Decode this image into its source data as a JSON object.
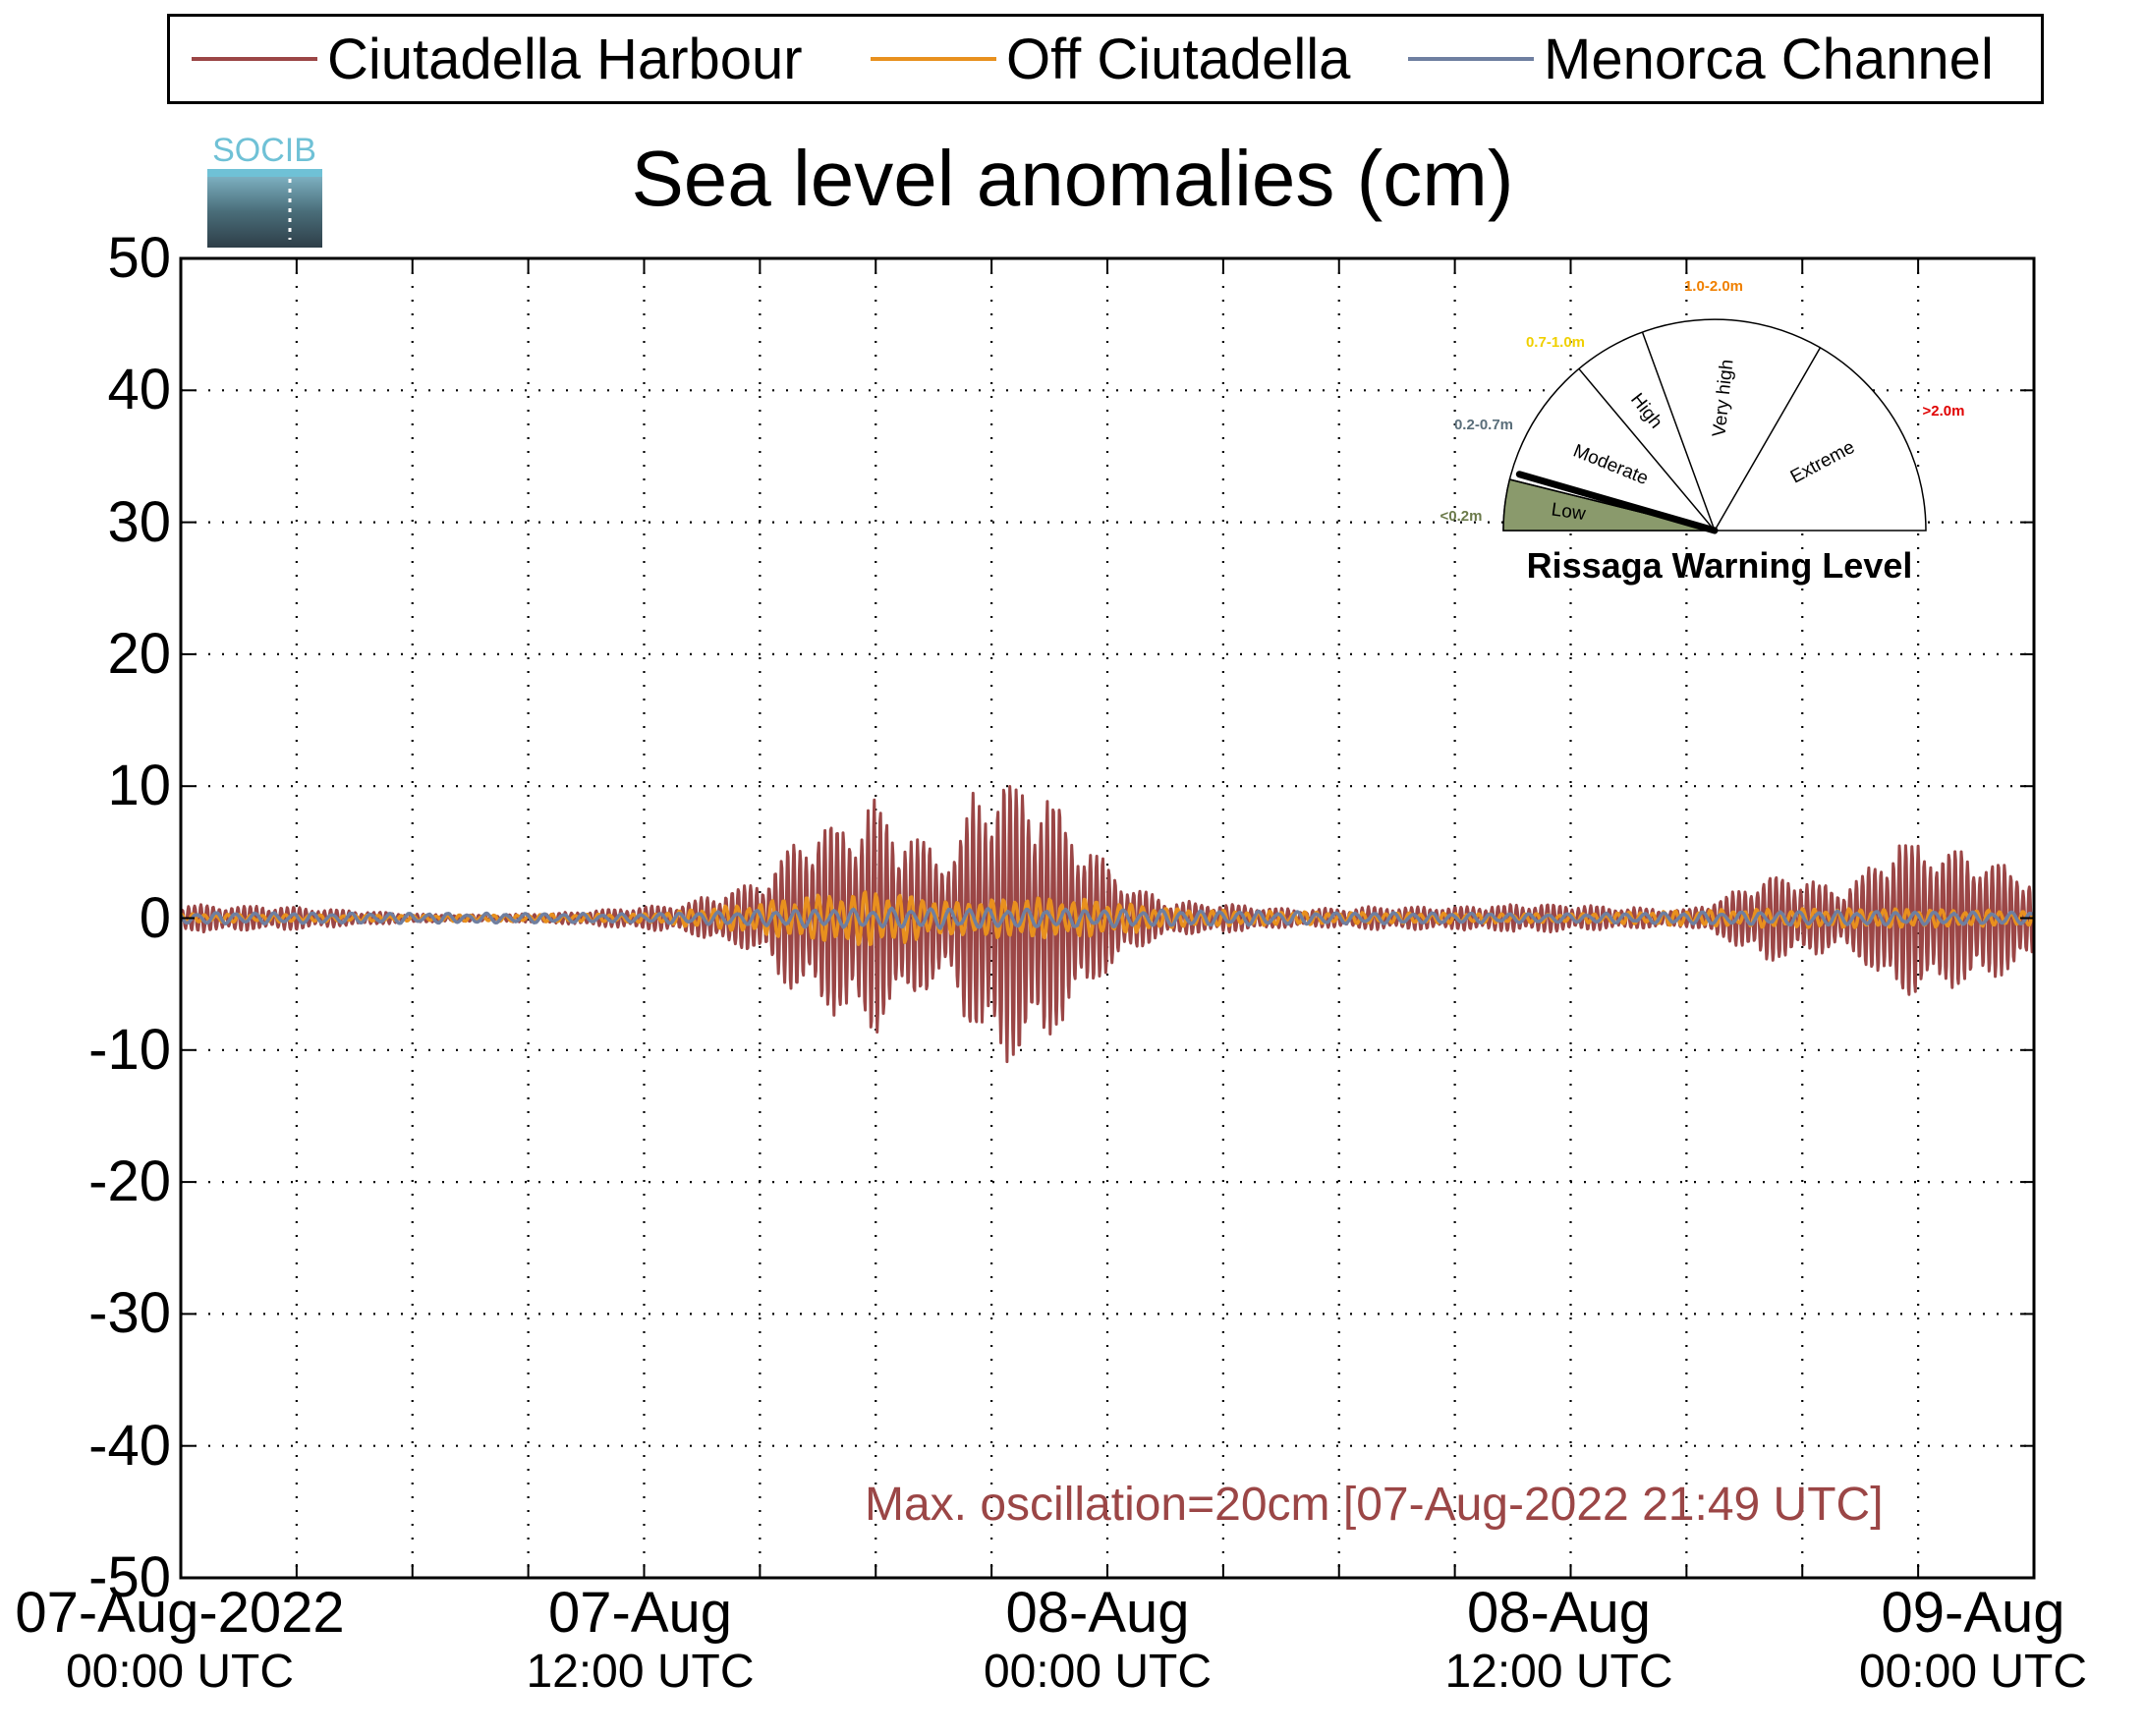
{
  "chart_data": {
    "type": "line",
    "title": "Sea level anomalies (cm)",
    "xlabel": "",
    "ylabel": "",
    "ylim": [
      -50,
      50
    ],
    "yticks": [
      50,
      40,
      30,
      20,
      10,
      0,
      -10,
      -20,
      -30,
      -40,
      -50
    ],
    "ytick_labels": [
      "50",
      "40",
      "30",
      "20",
      "10",
      "0",
      "-10",
      "-20",
      "-30",
      "-40",
      "-50"
    ],
    "xlim": [
      "2022-08-07 00:00 UTC",
      "2022-08-09 00:00 UTC"
    ],
    "xtick_labels": [
      {
        "line1": "07-Aug-2022",
        "line2": "00:00 UTC"
      },
      {
        "line1": "07-Aug",
        "line2": "12:00 UTC"
      },
      {
        "line1": "08-Aug",
        "line2": "00:00 UTC"
      },
      {
        "line1": "08-Aug",
        "line2": "12:00 UTC"
      },
      {
        "line1": "09-Aug",
        "line2": "00:00 UTC"
      }
    ],
    "grid": true,
    "legend_position": "top",
    "series": [
      {
        "name": "Ciutadella Harbour",
        "color": "#9b4646",
        "amplitude_envelope": {
          "time_hours": [
            0,
            1,
            3,
            4,
            6,
            8,
            10,
            12,
            13,
            14,
            15,
            16,
            18,
            19,
            20,
            20.5,
            21,
            21.8,
            22.5,
            23.5,
            24.5,
            25.5,
            27,
            29,
            31,
            33,
            35,
            37,
            39,
            40,
            41,
            42,
            43,
            43.5,
            44.5,
            45.5,
            46.5,
            47.5,
            48
          ],
          "amplitude_cm": [
            1.0,
            0.9,
            0.8,
            0.6,
            0.3,
            0.2,
            0.4,
            0.8,
            1.0,
            1.8,
            2.5,
            5.5,
            8.0,
            5.5,
            4.5,
            8.5,
            9.5,
            10.0,
            8.5,
            5.0,
            2.5,
            1.2,
            1.0,
            0.6,
            0.8,
            0.8,
            1.0,
            0.8,
            0.6,
            1.5,
            3.0,
            2.8,
            2.0,
            3.0,
            5.5,
            5.0,
            4.5,
            3.5,
            3.0
          ]
        }
      },
      {
        "name": "Off Ciutadella",
        "color": "#e8901e",
        "amplitude_envelope": {
          "time_hours": [
            0,
            6,
            12,
            14,
            16,
            18,
            20,
            22,
            24,
            26,
            30,
            36,
            40,
            44,
            48
          ],
          "amplitude_cm": [
            0.3,
            0.2,
            0.3,
            0.8,
            1.5,
            2.0,
            1.2,
            1.5,
            1.2,
            0.6,
            0.4,
            0.3,
            0.6,
            0.7,
            0.5
          ]
        }
      },
      {
        "name": "Menorca Channel",
        "color": "#6f7fa0",
        "amplitude_envelope": {
          "time_hours": [
            0,
            12,
            16,
            20,
            24,
            30,
            36,
            42,
            48
          ],
          "amplitude_cm": [
            0.4,
            0.3,
            0.6,
            0.7,
            0.6,
            0.4,
            0.3,
            0.5,
            0.4
          ]
        }
      }
    ],
    "annotation": "Max. oscillation=20cm [07-Aug-2022 21:49 UTC]"
  },
  "logo": {
    "text": "SOCIB"
  },
  "warning_gauge": {
    "title": "Rissaga Warning Level",
    "current_level": "Low",
    "sectors": [
      {
        "label": "Low",
        "range": "<0.2m",
        "color": "#6b7a4a"
      },
      {
        "label": "Moderate",
        "range": "0.2-0.7m",
        "color": "#5a6e7a"
      },
      {
        "label": "High",
        "range": "0.7-1.0m",
        "color": "#f0d000"
      },
      {
        "label": "Very high",
        "range": "1.0-2.0m",
        "color": "#f08000"
      },
      {
        "label": "Extreme",
        "range": ">2.0m",
        "color": "#e00000"
      }
    ],
    "active_fill": "#8a9a6c"
  }
}
